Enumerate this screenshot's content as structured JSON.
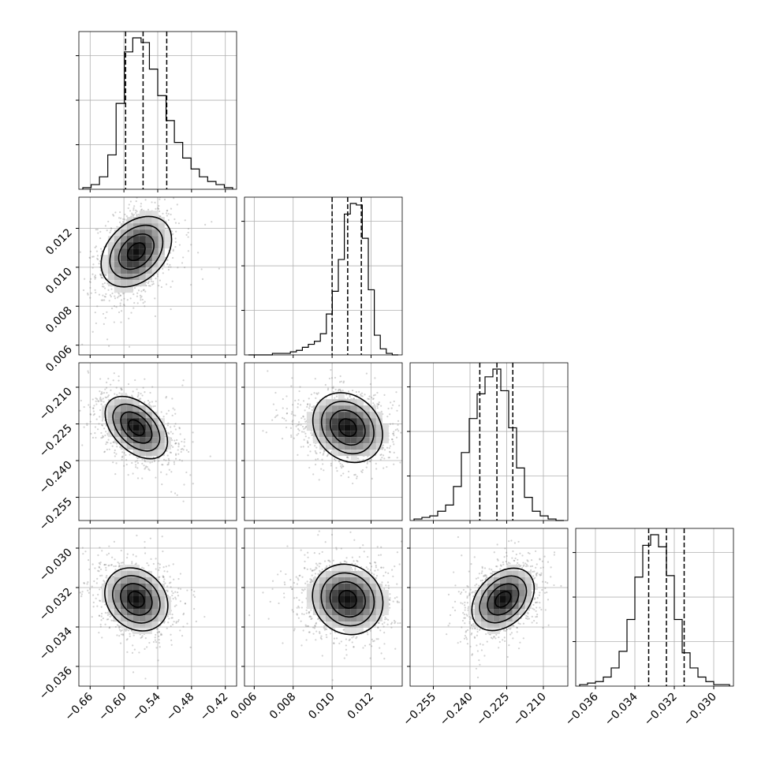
{
  "chart_data": {
    "type": "corner",
    "params": [
      {
        "range": [
          -0.68,
          -0.4
        ],
        "ticks": [
          -0.66,
          -0.6,
          -0.54,
          -0.48,
          -0.42
        ],
        "tick_labels": [
          "−0.66",
          "−0.60",
          "−0.54",
          "−0.48",
          "−0.42"
        ],
        "quantiles": [
          -0.597,
          -0.566,
          -0.524
        ]
      },
      {
        "range": [
          0.0055,
          0.0136
        ],
        "ticks": [
          0.006,
          0.008,
          0.01,
          0.012
        ],
        "tick_labels": [
          "0.006",
          "0.008",
          "0.010",
          "0.012"
        ],
        "quantiles": [
          0.01,
          0.0108,
          0.0115
        ]
      },
      {
        "range": [
          -0.2645,
          -0.2
        ],
        "ticks": [
          -0.255,
          -0.24,
          -0.225,
          -0.21
        ],
        "tick_labels": [
          "−0.255",
          "−0.240",
          "−0.225",
          "−0.210"
        ],
        "quantiles": [
          -0.236,
          -0.229,
          -0.2225
        ]
      },
      {
        "range": [
          -0.037,
          -0.029
        ],
        "ticks": [
          -0.036,
          -0.034,
          -0.032,
          -0.03
        ],
        "tick_labels": [
          "−0.036",
          "−0.034",
          "−0.032",
          "−0.030"
        ],
        "quantiles": [
          -0.0333,
          -0.0324,
          -0.0315
        ]
      }
    ],
    "histograms": [
      {
        "values": [
          1,
          3,
          8,
          22,
          55,
          88,
          97,
          94,
          77,
          60,
          44,
          30,
          20,
          13,
          8,
          5,
          3,
          1
        ]
      },
      {
        "values": [
          0,
          0,
          0,
          0,
          1,
          1,
          1,
          2,
          3,
          5,
          7,
          9,
          14,
          27,
          42,
          63,
          93,
          100,
          99,
          77,
          43,
          13,
          4,
          1,
          0
        ]
      },
      {
        "values": [
          1,
          2,
          3,
          6,
          10,
          22,
          44,
          66,
          82,
          93,
          98,
          84,
          60,
          34,
          15,
          6,
          3,
          1,
          0
        ]
      },
      {
        "values": [
          1,
          2,
          3,
          6,
          12,
          23,
          44,
          72,
          93,
          100,
          92,
          73,
          44,
          22,
          12,
          6,
          3,
          1,
          1
        ]
      }
    ],
    "pairs": [
      {
        "row": 1,
        "col": 0,
        "mean": [
          -0.578,
          0.0108
        ],
        "sd": [
          0.028,
          0.001
        ],
        "corr": 0.35
      },
      {
        "row": 2,
        "col": 0,
        "mean": [
          -0.578,
          -0.2265
        ],
        "sd": [
          0.028,
          0.0063
        ],
        "corr": -0.45
      },
      {
        "row": 2,
        "col": 1,
        "mean": [
          0.0108,
          -0.2265
        ],
        "sd": [
          0.001,
          0.0063
        ],
        "corr": -0.2
      },
      {
        "row": 3,
        "col": 0,
        "mean": [
          -0.578,
          -0.0326
        ],
        "sd": [
          0.028,
          0.0008
        ],
        "corr": -0.2
      },
      {
        "row": 3,
        "col": 1,
        "mean": [
          0.0108,
          -0.0326
        ],
        "sd": [
          0.001,
          0.0008
        ],
        "corr": -0.1
      },
      {
        "row": 3,
        "col": 2,
        "mean": [
          -0.2265,
          -0.0326
        ],
        "sd": [
          0.0063,
          0.0008
        ],
        "corr": 0.35
      }
    ],
    "contour_levels_sigma": [
      0.5,
      1.0,
      1.5,
      2.0
    ],
    "grid": true,
    "colors": {
      "line": "#000000",
      "grid": "#b0b0b0",
      "scatter": "#7f7f7f",
      "density_dark": "#000000",
      "density_light": "#ffffff"
    }
  }
}
